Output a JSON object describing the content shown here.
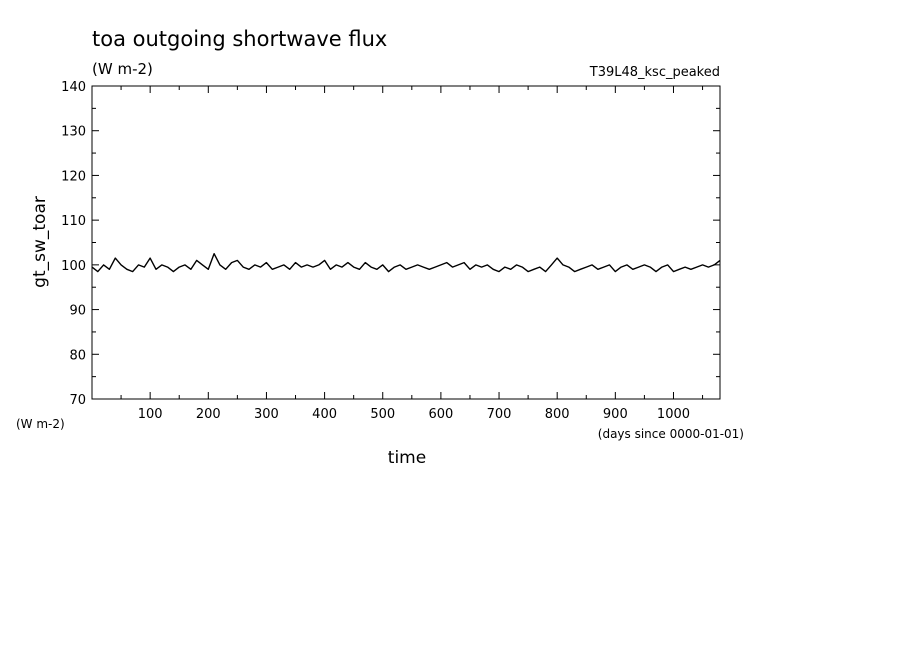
{
  "title": "toa outgoing shortwave flux",
  "units": "(W m-2)",
  "run_label": "T39L48_ksc_peaked",
  "chart_data": {
    "type": "line",
    "title": "toa outgoing shortwave flux",
    "ylabel": "gt_sw_toar",
    "yunits": "(W m-2)",
    "xlabel": "time",
    "xunits": "(days since 0000-01-01)",
    "xlim": [
      0,
      1080
    ],
    "ylim": [
      70,
      140
    ],
    "xticks": [
      100,
      200,
      300,
      400,
      500,
      600,
      700,
      800,
      900,
      1000
    ],
    "yticks": [
      70,
      80,
      90,
      100,
      110,
      120,
      130,
      140
    ],
    "grid": false,
    "series": [
      {
        "color": "#000000",
        "x": [
          0,
          10,
          20,
          30,
          40,
          50,
          60,
          70,
          80,
          90,
          100,
          110,
          120,
          130,
          140,
          150,
          160,
          170,
          180,
          190,
          200,
          210,
          220,
          230,
          240,
          250,
          260,
          270,
          280,
          290,
          300,
          310,
          320,
          330,
          340,
          350,
          360,
          370,
          380,
          390,
          400,
          410,
          420,
          430,
          440,
          450,
          460,
          470,
          480,
          490,
          500,
          510,
          520,
          530,
          540,
          550,
          560,
          570,
          580,
          590,
          600,
          610,
          620,
          630,
          640,
          650,
          660,
          670,
          680,
          690,
          700,
          710,
          720,
          730,
          740,
          750,
          760,
          770,
          780,
          790,
          800,
          810,
          820,
          830,
          840,
          850,
          860,
          870,
          880,
          890,
          900,
          910,
          920,
          930,
          940,
          950,
          960,
          970,
          980,
          990,
          1000,
          1010,
          1020,
          1030,
          1040,
          1050,
          1060,
          1070,
          1080
        ],
        "y": [
          99.5,
          98.5,
          100,
          99,
          101.5,
          100,
          99,
          98.5,
          100,
          99.5,
          101.5,
          99,
          100,
          99.5,
          98.5,
          99.5,
          100,
          99,
          101,
          100,
          99,
          102.5,
          100,
          99,
          100.5,
          101,
          99.5,
          99,
          100,
          99.5,
          100.5,
          99,
          99.5,
          100,
          99,
          100.5,
          99.5,
          100,
          99.5,
          100,
          101,
          99,
          100,
          99.5,
          100.5,
          99.5,
          99,
          100.5,
          99.5,
          99,
          100,
          98.5,
          99.5,
          100,
          99,
          99.5,
          100,
          99.5,
          99,
          99.5,
          100,
          100.5,
          99.5,
          100,
          100.5,
          99,
          100,
          99.5,
          100,
          99,
          98.5,
          99.5,
          99,
          100,
          99.5,
          98.5,
          99,
          99.5,
          98.5,
          100,
          101.5,
          100,
          99.5,
          98.5,
          99,
          99.5,
          100,
          99,
          99.5,
          100,
          98.5,
          99.5,
          100,
          99,
          99.5,
          100,
          99.5,
          98.5,
          99.5,
          100,
          98.5,
          99,
          99.5,
          99,
          99.5,
          100,
          99.5,
          100,
          101
        ]
      }
    ]
  }
}
